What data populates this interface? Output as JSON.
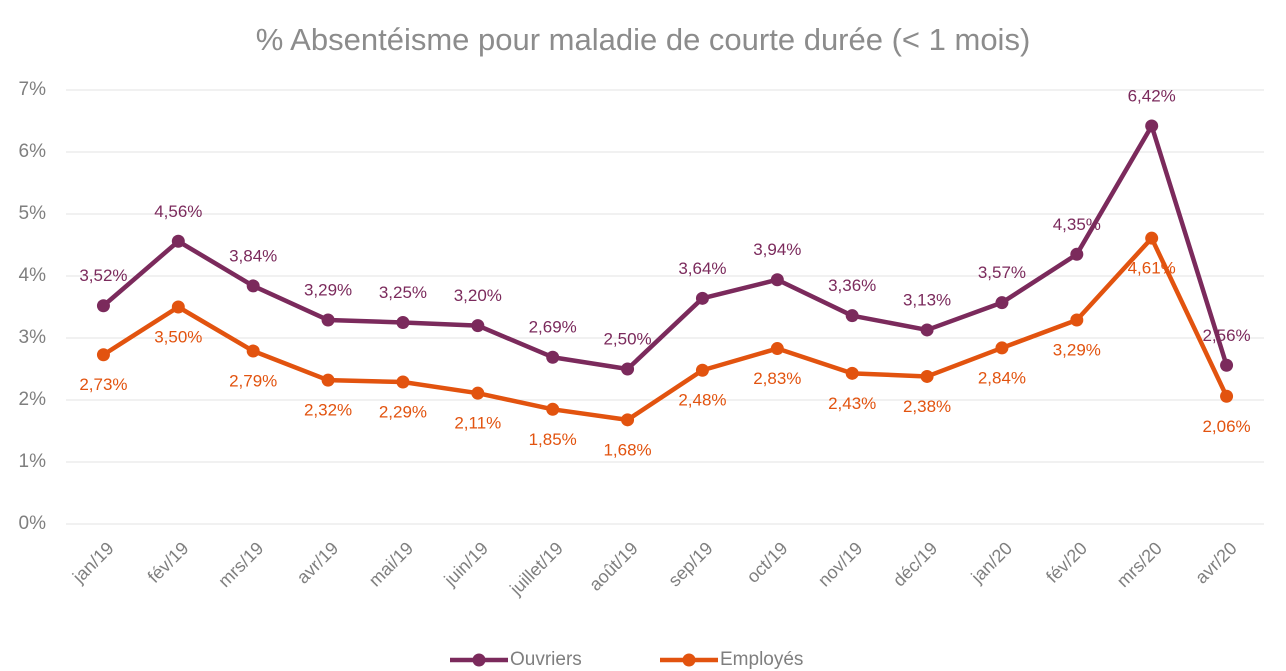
{
  "chart_data": {
    "type": "line",
    "title": "% Absentéisme pour maladie de courte durée (< 1 mois)",
    "categories": [
      "jan/19",
      "fév/19",
      "mrs/19",
      "avr/19",
      "mai/19",
      "juin/19",
      "juillet/19",
      "août/19",
      "sep/19",
      "oct/19",
      "nov/19",
      "déc/19",
      "jan/20",
      "fév/20",
      "mrs/20",
      "avr/20"
    ],
    "series": [
      {
        "name": "Ouvriers",
        "color": "#7b2a5c",
        "values": [
          3.52,
          4.56,
          3.84,
          3.29,
          3.25,
          3.2,
          2.69,
          2.5,
          3.64,
          3.94,
          3.36,
          3.13,
          3.57,
          4.35,
          6.42,
          2.56
        ],
        "value_labels": [
          "3,52%",
          "4,56%",
          "3,84%",
          "3,29%",
          "3,25%",
          "3,20%",
          "2,69%",
          "2,50%",
          "3,64%",
          "3,94%",
          "3,36%",
          "3,13%",
          "3,57%",
          "4,35%",
          "6,42%",
          "2,56%"
        ]
      },
      {
        "name": "Employés",
        "color": "#e2530f",
        "values": [
          2.73,
          3.5,
          2.79,
          2.32,
          2.29,
          2.11,
          1.85,
          1.68,
          2.48,
          2.83,
          2.43,
          2.38,
          2.84,
          3.29,
          4.61,
          2.06
        ],
        "value_labels": [
          "2,73%",
          "3,50%",
          "2,79%",
          "2,32%",
          "2,29%",
          "2,11%",
          "1,85%",
          "1,68%",
          "2,48%",
          "2,83%",
          "2,43%",
          "2,38%",
          "2,84%",
          "3,29%",
          "4,61%",
          "2,06%"
        ]
      }
    ],
    "ylim": [
      0,
      7
    ],
    "yticks": [
      {
        "value": 0,
        "label": "0%"
      },
      {
        "value": 1,
        "label": "1%"
      },
      {
        "value": 2,
        "label": "2%"
      },
      {
        "value": 3,
        "label": "3%"
      },
      {
        "value": 4,
        "label": "4%"
      },
      {
        "value": 5,
        "label": "5%"
      },
      {
        "value": 6,
        "label": "6%"
      },
      {
        "value": 7,
        "label": "7%"
      }
    ],
    "grid": true,
    "legend": "bottom"
  }
}
